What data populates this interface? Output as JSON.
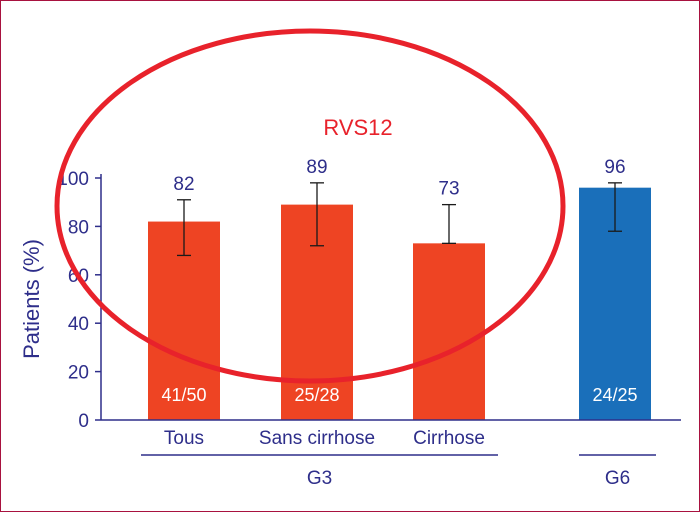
{
  "chart_data": {
    "type": "bar",
    "ylabel": "Patients (%)",
    "ylim": [
      0,
      100
    ],
    "yticks": [
      0,
      20,
      40,
      60,
      80,
      100
    ],
    "categories": [
      "Tous",
      "Sans cirrhose",
      "Cirrhose",
      "G6"
    ],
    "category_labels": [
      "Tous",
      "Sans cirrhose",
      "Cirrhose",
      ""
    ],
    "values": [
      82,
      89,
      73,
      96
    ],
    "value_labels": [
      "82",
      "89",
      "73",
      "96"
    ],
    "error_low": [
      68,
      72,
      73,
      78
    ],
    "error_high": [
      91,
      98,
      89,
      98
    ],
    "fraction_labels": [
      "41/50",
      "25/28",
      "",
      "24/25"
    ],
    "bar_colors": [
      "#ee4423",
      "#ee4423",
      "#ee4423",
      "#1a6fba"
    ],
    "groups": [
      {
        "label": "G3",
        "categories": [
          "Tous",
          "Sans cirrhose",
          "Cirrhose"
        ]
      },
      {
        "label": "G6",
        "categories": [
          "G6"
        ]
      }
    ],
    "annotation": "RVS12",
    "annotation_color": "#e8222b",
    "axis_color": "#2e2e8a",
    "grid": false
  }
}
